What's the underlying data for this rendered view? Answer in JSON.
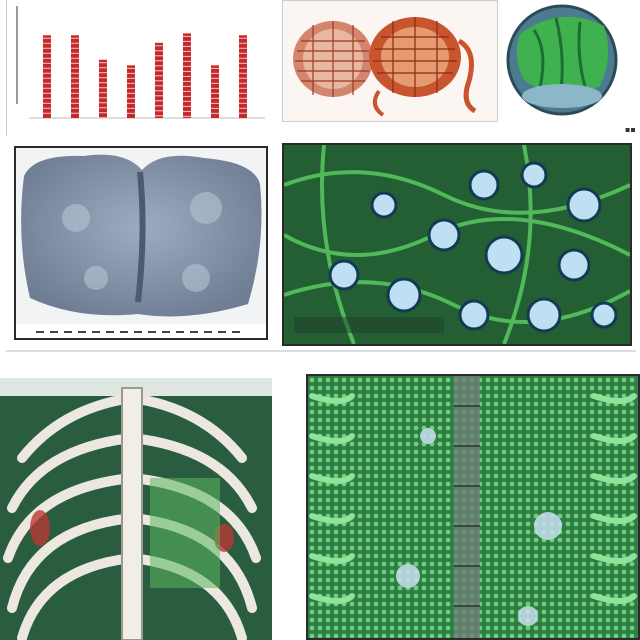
{
  "panels": {
    "bar_chart": {
      "caption_text": ""
    },
    "anatomy_overlay": {
      "lines": [
        "",
        "",
        ""
      ]
    }
  },
  "colors": {
    "bar_red": "#c8282a",
    "leaf_green": "#35a745",
    "dark_green": "#1f5e36",
    "tissue_blue": "#8e9aae",
    "bone_white": "#e6e3dc",
    "cell_blue": "#a9cfe6"
  },
  "chart_data": {
    "type": "bar",
    "categories": [
      "",
      "",
      "",
      "",
      "",
      "",
      "",
      "",
      ""
    ],
    "values": [
      88,
      88,
      62,
      56,
      80,
      90,
      56,
      88,
      0
    ],
    "title": "",
    "xlabel": "",
    "ylabel": "",
    "ylim": [
      0,
      100
    ],
    "grid": false
  }
}
